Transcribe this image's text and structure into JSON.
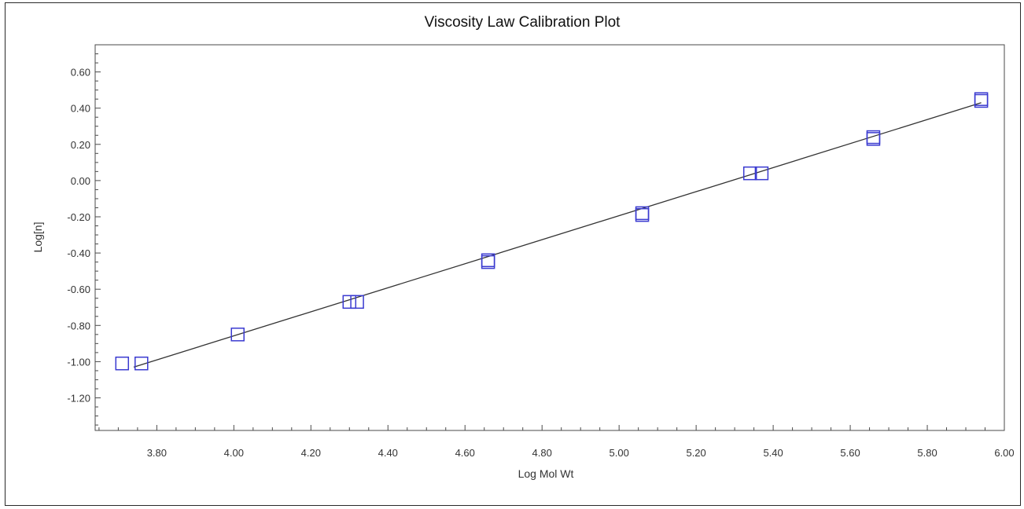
{
  "chart_data": {
    "type": "scatter",
    "title": "Viscosity Law Calibration Plot",
    "xlabel": "Log Mol Wt",
    "ylabel": "Log[n]",
    "xlim": [
      3.64,
      6.0
    ],
    "ylim": [
      -1.38,
      0.75
    ],
    "grid": false,
    "legend": "none",
    "x_ticks": [
      "3.80",
      "4.00",
      "4.20",
      "4.40",
      "4.60",
      "4.80",
      "5.00",
      "5.20",
      "5.40",
      "5.60",
      "5.80",
      "6.00"
    ],
    "y_ticks": [
      "0.60",
      "0.40",
      "0.20",
      "0.00",
      "-0.20",
      "-0.40",
      "-0.60",
      "-0.80",
      "-1.00",
      "-1.20"
    ],
    "series": [
      {
        "marker": "open-square",
        "color": "#3a3ad0",
        "points": [
          {
            "x": 3.71,
            "y": -1.01
          },
          {
            "x": 3.76,
            "y": -1.01
          },
          {
            "x": 4.01,
            "y": -0.85
          },
          {
            "x": 4.3,
            "y": -0.67
          },
          {
            "x": 4.32,
            "y": -0.67
          },
          {
            "x": 4.66,
            "y": -0.45
          },
          {
            "x": 4.66,
            "y": -0.44
          },
          {
            "x": 5.06,
            "y": -0.19
          },
          {
            "x": 5.06,
            "y": -0.18
          },
          {
            "x": 5.34,
            "y": 0.04
          },
          {
            "x": 5.37,
            "y": 0.04
          },
          {
            "x": 5.66,
            "y": 0.24
          },
          {
            "x": 5.66,
            "y": 0.23
          },
          {
            "x": 5.94,
            "y": 0.44
          },
          {
            "x": 5.94,
            "y": 0.45
          }
        ]
      }
    ],
    "fit_line": {
      "color": "#333333",
      "points": [
        {
          "x": 3.74,
          "y": -1.03
        },
        {
          "x": 5.94,
          "y": 0.43
        }
      ]
    }
  }
}
